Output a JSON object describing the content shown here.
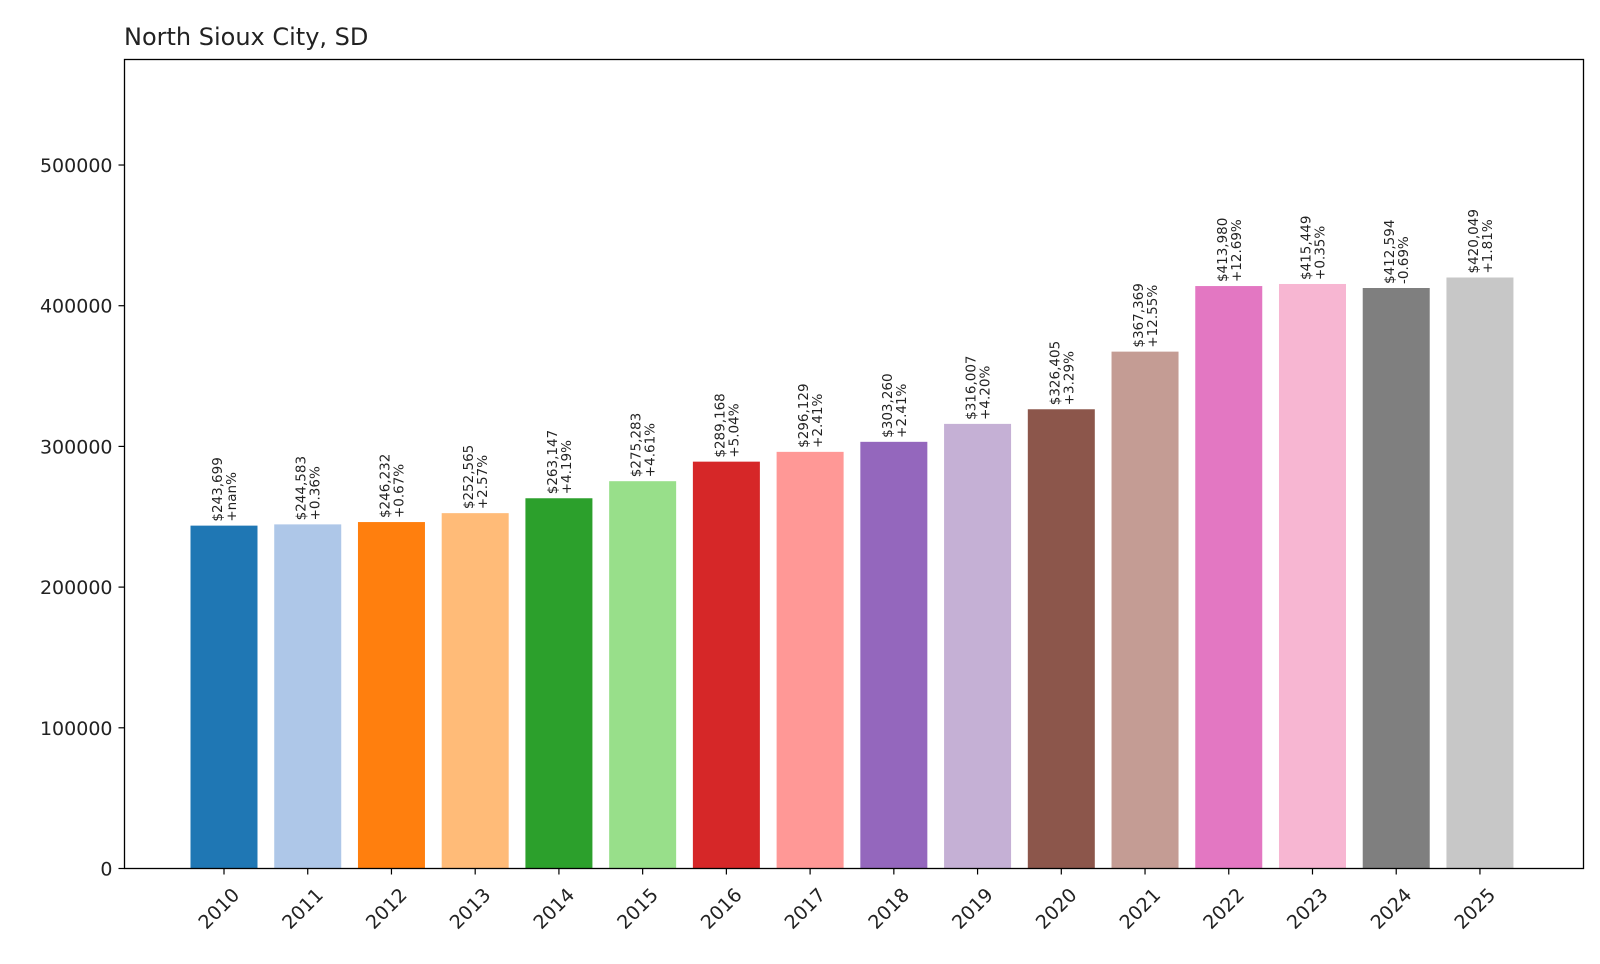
{
  "chart_data": {
    "type": "bar",
    "title": "North Sioux City, SD",
    "xlabel": "",
    "ylabel": "",
    "categories": [
      "2010",
      "2011",
      "2012",
      "2013",
      "2014",
      "2015",
      "2016",
      "2017",
      "2018",
      "2019",
      "2020",
      "2021",
      "2022",
      "2023",
      "2024",
      "2025"
    ],
    "values": [
      243699,
      244583,
      246232,
      252565,
      263147,
      275283,
      289168,
      296129,
      303260,
      316007,
      326405,
      367369,
      413980,
      415449,
      412594,
      420049
    ],
    "value_labels": [
      "$243,699",
      "$244,583",
      "$246,232",
      "$252,565",
      "$263,147",
      "$275,283",
      "$289,168",
      "$296,129",
      "$303,260",
      "$316,007",
      "$326,405",
      "$367,369",
      "$413,980",
      "$415,449",
      "$412,594",
      "$420,049"
    ],
    "change_labels": [
      "+nan%",
      "+0.36%",
      "+0.67%",
      "+2.57%",
      "+4.19%",
      "+4.61%",
      "+5.04%",
      "+2.41%",
      "+2.41%",
      "+4.20%",
      "+3.29%",
      "+12.55%",
      "+12.69%",
      "+0.35%",
      "-0.69%",
      "+1.81%"
    ],
    "colors": [
      "#1f77b4",
      "#aec7e8",
      "#ff7f0e",
      "#ffbb78",
      "#2ca02c",
      "#98df8a",
      "#d62728",
      "#ff9896",
      "#9467bd",
      "#c5b0d5",
      "#8c564b",
      "#c49c94",
      "#e377c2",
      "#f7b6d2",
      "#7f7f7f",
      "#c7c7c7"
    ],
    "ylim": [
      0,
      575000
    ],
    "yticks": [
      0,
      100000,
      200000,
      300000,
      400000,
      500000
    ],
    "ytick_labels": [
      "0",
      "100000",
      "200000",
      "300000",
      "400000",
      "500000"
    ],
    "grid": false,
    "legend": "none"
  }
}
